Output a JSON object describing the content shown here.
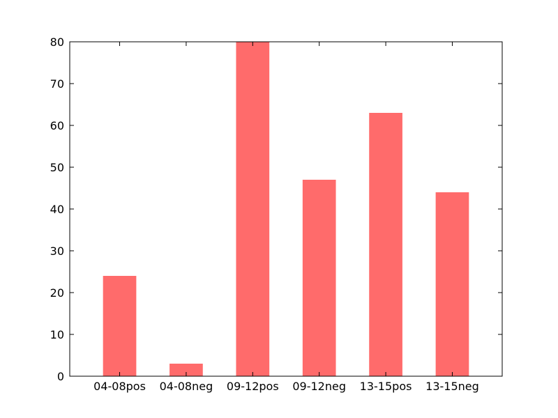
{
  "chart_data": {
    "type": "bar",
    "categories": [
      "04-08pos",
      "04-08neg",
      "09-12pos",
      "09-12neg",
      "13-15pos",
      "13-15neg"
    ],
    "values": [
      24,
      3,
      80,
      47,
      63,
      44
    ],
    "ylim": [
      0,
      80
    ],
    "yticks": [
      0,
      10,
      20,
      30,
      40,
      50,
      60,
      70,
      80
    ],
    "bar_color": "#ff6b6b",
    "grid": false,
    "title": "",
    "xlabel": "",
    "ylabel": ""
  }
}
